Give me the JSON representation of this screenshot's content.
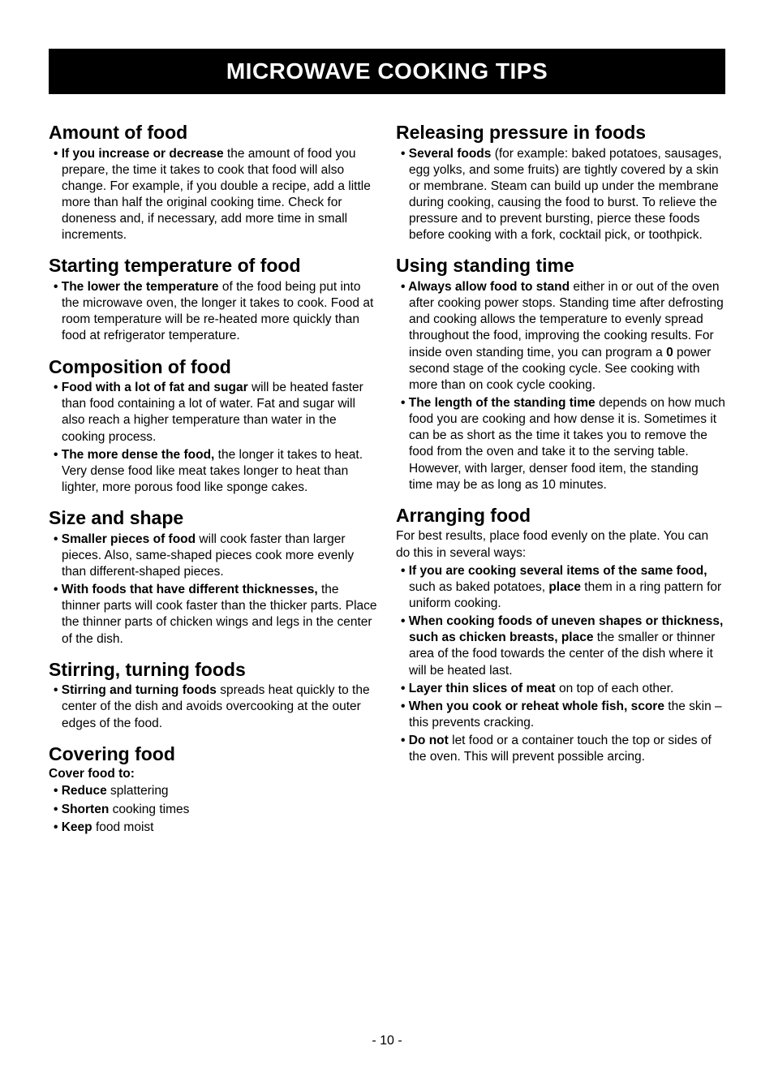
{
  "banner": "MICROWAVE COOKING TIPS",
  "page_number": "- 10 -",
  "left": {
    "sections": [
      {
        "title": "Amount of food",
        "bullets": [
          [
            {
              "b": true,
              "t": "If you increase or decrease"
            },
            {
              "b": false,
              "t": " the amount of food you prepare, the time it takes to cook that food will also change. For example, if you double a recipe, add a little more than half the original cooking time. Check for doneness and, if necessary, add more time in small increments."
            }
          ]
        ]
      },
      {
        "title": "Starting temperature of food",
        "bullets": [
          [
            {
              "b": true,
              "t": "The lower the temperature"
            },
            {
              "b": false,
              "t": " of the food being put into the microwave oven, the longer it takes to cook. Food at room temperature will be re-heated more quickly than food at refrigerator temperature."
            }
          ]
        ]
      },
      {
        "title": "Composition of food",
        "bullets": [
          [
            {
              "b": true,
              "t": "Food with a lot of fat and sugar"
            },
            {
              "b": false,
              "t": " will be heated faster than food containing a lot of water. Fat and sugar will also reach a higher temperature than water in the cooking process."
            }
          ],
          [
            {
              "b": true,
              "t": "The more dense the food,"
            },
            {
              "b": false,
              "t": " the longer it takes to heat. Very dense food like meat takes longer to heat than lighter, more porous food like sponge cakes."
            }
          ]
        ]
      },
      {
        "title": "Size and shape",
        "bullets": [
          [
            {
              "b": true,
              "t": "Smaller pieces of food"
            },
            {
              "b": false,
              "t": " will cook faster than larger pieces. Also, same-shaped pieces cook more evenly than different-shaped pieces."
            }
          ],
          [
            {
              "b": true,
              "t": "With foods that have different thicknesses,"
            },
            {
              "b": false,
              "t": " the thinner parts will cook faster than the thicker parts. Place the thinner parts of chicken wings and legs in the center of the dish."
            }
          ]
        ]
      },
      {
        "title": "Stirring, turning foods",
        "bullets": [
          [
            {
              "b": true,
              "t": "Stirring and turning foods"
            },
            {
              "b": false,
              "t": " spreads heat quickly to the center of the dish and avoids overcooking at the outer edges of the food."
            }
          ]
        ]
      },
      {
        "title": "Covering food",
        "subintro": "Cover food to:",
        "bullets": [
          [
            {
              "b": true,
              "t": "Reduce"
            },
            {
              "b": false,
              "t": " splattering"
            }
          ],
          [
            {
              "b": true,
              "t": "Shorten"
            },
            {
              "b": false,
              "t": " cooking times"
            }
          ],
          [
            {
              "b": true,
              "t": "Keep"
            },
            {
              "b": false,
              "t": " food moist"
            }
          ]
        ]
      }
    ]
  },
  "right": {
    "sections": [
      {
        "title": "Releasing pressure in foods",
        "bullets": [
          [
            {
              "b": true,
              "t": "Several foods"
            },
            {
              "b": false,
              "t": " (for example: baked potatoes, sausages, egg yolks, and some fruits) are tightly covered by a skin or membrane. Steam can build up under the membrane during cooking, causing the food to burst. To relieve the pressure and to prevent bursting, pierce these foods before cooking with a fork, cocktail pick, or toothpick."
            }
          ]
        ]
      },
      {
        "title": "Using standing time",
        "bullets": [
          [
            {
              "b": true,
              "t": "Always allow food to stand"
            },
            {
              "b": false,
              "t": " either in or out of the oven after cooking power stops. Standing time after defrosting and cooking allows the temperature to evenly spread throughout the food, improving the cooking results. For inside oven standing time,  you can program a "
            },
            {
              "b": true,
              "t": "0"
            },
            {
              "b": false,
              "t": " power second stage of the cooking cycle. See cooking with more than on cook cycle cooking."
            }
          ],
          [
            {
              "b": true,
              "t": "The length of the standing time"
            },
            {
              "b": false,
              "t": " depends on how much food you are cooking and how dense it is. Sometimes it can be as short as the time it takes you to remove the food from the oven and take it to the serving table. However, with larger, denser food item, the standing time may be as long as 10 minutes."
            }
          ]
        ]
      },
      {
        "title": "Arranging food",
        "intro": "For best results, place food evenly on the plate. You can do this in several ways:",
        "bullets": [
          [
            {
              "b": true,
              "t": "If you are cooking several items of the same food,"
            },
            {
              "b": false,
              "t": " such as baked potatoes, "
            },
            {
              "b": true,
              "t": "place"
            },
            {
              "b": false,
              "t": " them in a ring pattern for uniform cooking."
            }
          ],
          [
            {
              "b": true,
              "t": "When cooking foods of uneven shapes or thickness, such as chicken breasts, place"
            },
            {
              "b": false,
              "t": " the smaller or thinner area of the food towards the center of the dish where it will be heated last."
            }
          ],
          [
            {
              "b": true,
              "t": "Layer thin slices of meat"
            },
            {
              "b": false,
              "t": " on top of each other."
            }
          ],
          [
            {
              "b": true,
              "t": "When you cook or reheat whole fish, score"
            },
            {
              "b": false,
              "t": " the skin – this prevents cracking."
            }
          ],
          [
            {
              "b": true,
              "t": "Do not"
            },
            {
              "b": false,
              "t": " let food or a container touch the top or sides of the oven. This will prevent possible arcing."
            }
          ]
        ]
      }
    ]
  }
}
